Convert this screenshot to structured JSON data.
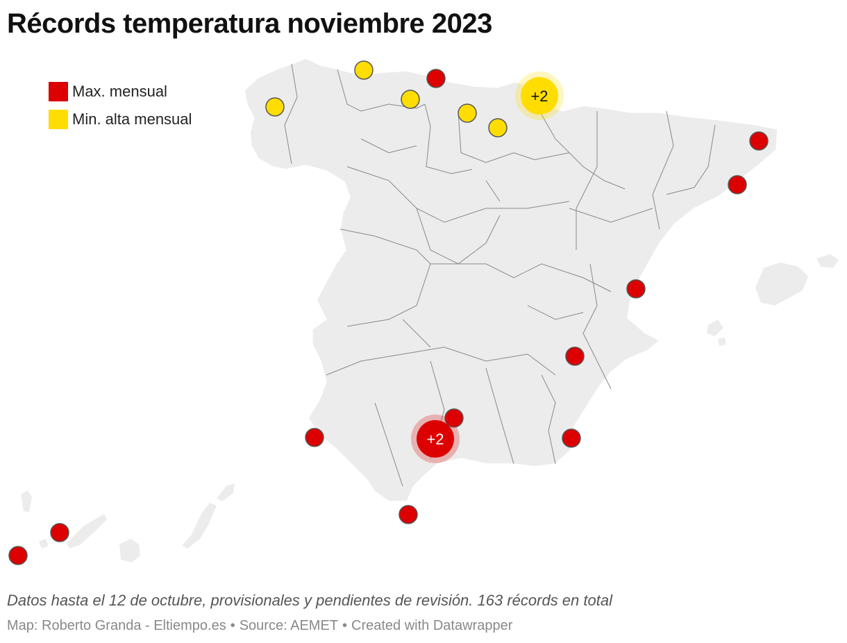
{
  "title": "Récords temperatura noviembre 2023",
  "legend": [
    {
      "label": "Max. mensual",
      "color": "#dd0000"
    },
    {
      "label": "Min. alta mensual",
      "color": "#ffdd00"
    }
  ],
  "colors": {
    "land": "#ececec",
    "border": "#888888",
    "marker_stroke": "#555555"
  },
  "markers": [
    {
      "type": "min",
      "count_label": ""
    },
    {
      "type": "min",
      "count_label": ""
    },
    {
      "type": "max",
      "count_label": ""
    },
    {
      "type": "min",
      "count_label": ""
    },
    {
      "type": "min",
      "count_label": ""
    },
    {
      "type": "min",
      "count_label": ""
    },
    {
      "type": "min",
      "count_label": "+2"
    },
    {
      "type": "max",
      "count_label": ""
    },
    {
      "type": "max",
      "count_label": ""
    },
    {
      "type": "max",
      "count_label": ""
    },
    {
      "type": "max",
      "count_label": ""
    },
    {
      "type": "max",
      "count_label": ""
    },
    {
      "type": "max",
      "count_label": ""
    },
    {
      "type": "max",
      "count_label": "+2"
    },
    {
      "type": "max",
      "count_label": ""
    },
    {
      "type": "max",
      "count_label": ""
    },
    {
      "type": "max",
      "count_label": ""
    },
    {
      "type": "max",
      "count_label": ""
    }
  ],
  "note": "Datos hasta el 12 de octubre, provisionales y pendientes de revisión. 163 récords en total",
  "credits": {
    "map": "Map: Roberto Granda - Eltiempo.es",
    "source": "Source: AEMET",
    "tool": "Created with Datawrapper",
    "separator": "•"
  }
}
